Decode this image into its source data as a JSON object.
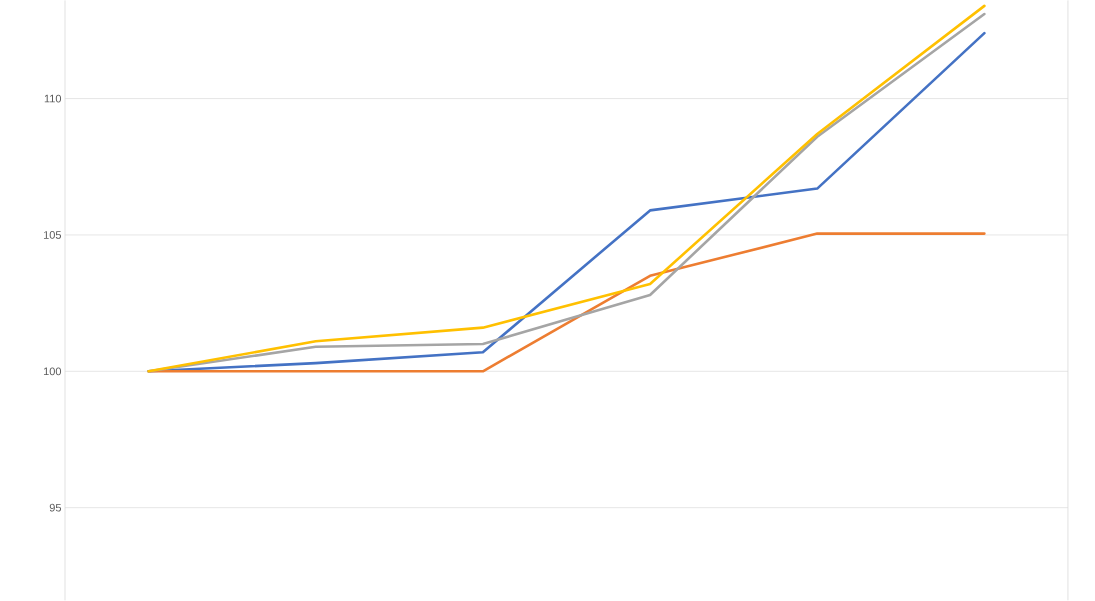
{
  "chart_data": {
    "type": "line",
    "categories": [
      null,
      null,
      null,
      null,
      null,
      null
    ],
    "series": [
      {
        "color": "#4472c4",
        "values": [
          100,
          100.3,
          100.7,
          105.9,
          106.7,
          112.4
        ]
      },
      {
        "color": "#ed7d31",
        "values": [
          100,
          100,
          100,
          103.5,
          105.05,
          105.05
        ]
      },
      {
        "color": "#a5a5a5",
        "values": [
          100,
          100.9,
          101.0,
          102.8,
          108.6,
          113.1
        ]
      },
      {
        "color": "#ffc000",
        "values": [
          100,
          101.1,
          101.6,
          103.2,
          108.7,
          113.4
        ]
      }
    ],
    "ylim": [
      91.6,
      113.6
    ],
    "yticks": [
      95,
      100,
      105,
      110
    ],
    "grid": "y",
    "tick_labels": "y",
    "marker": "none",
    "line_style": "solid"
  }
}
